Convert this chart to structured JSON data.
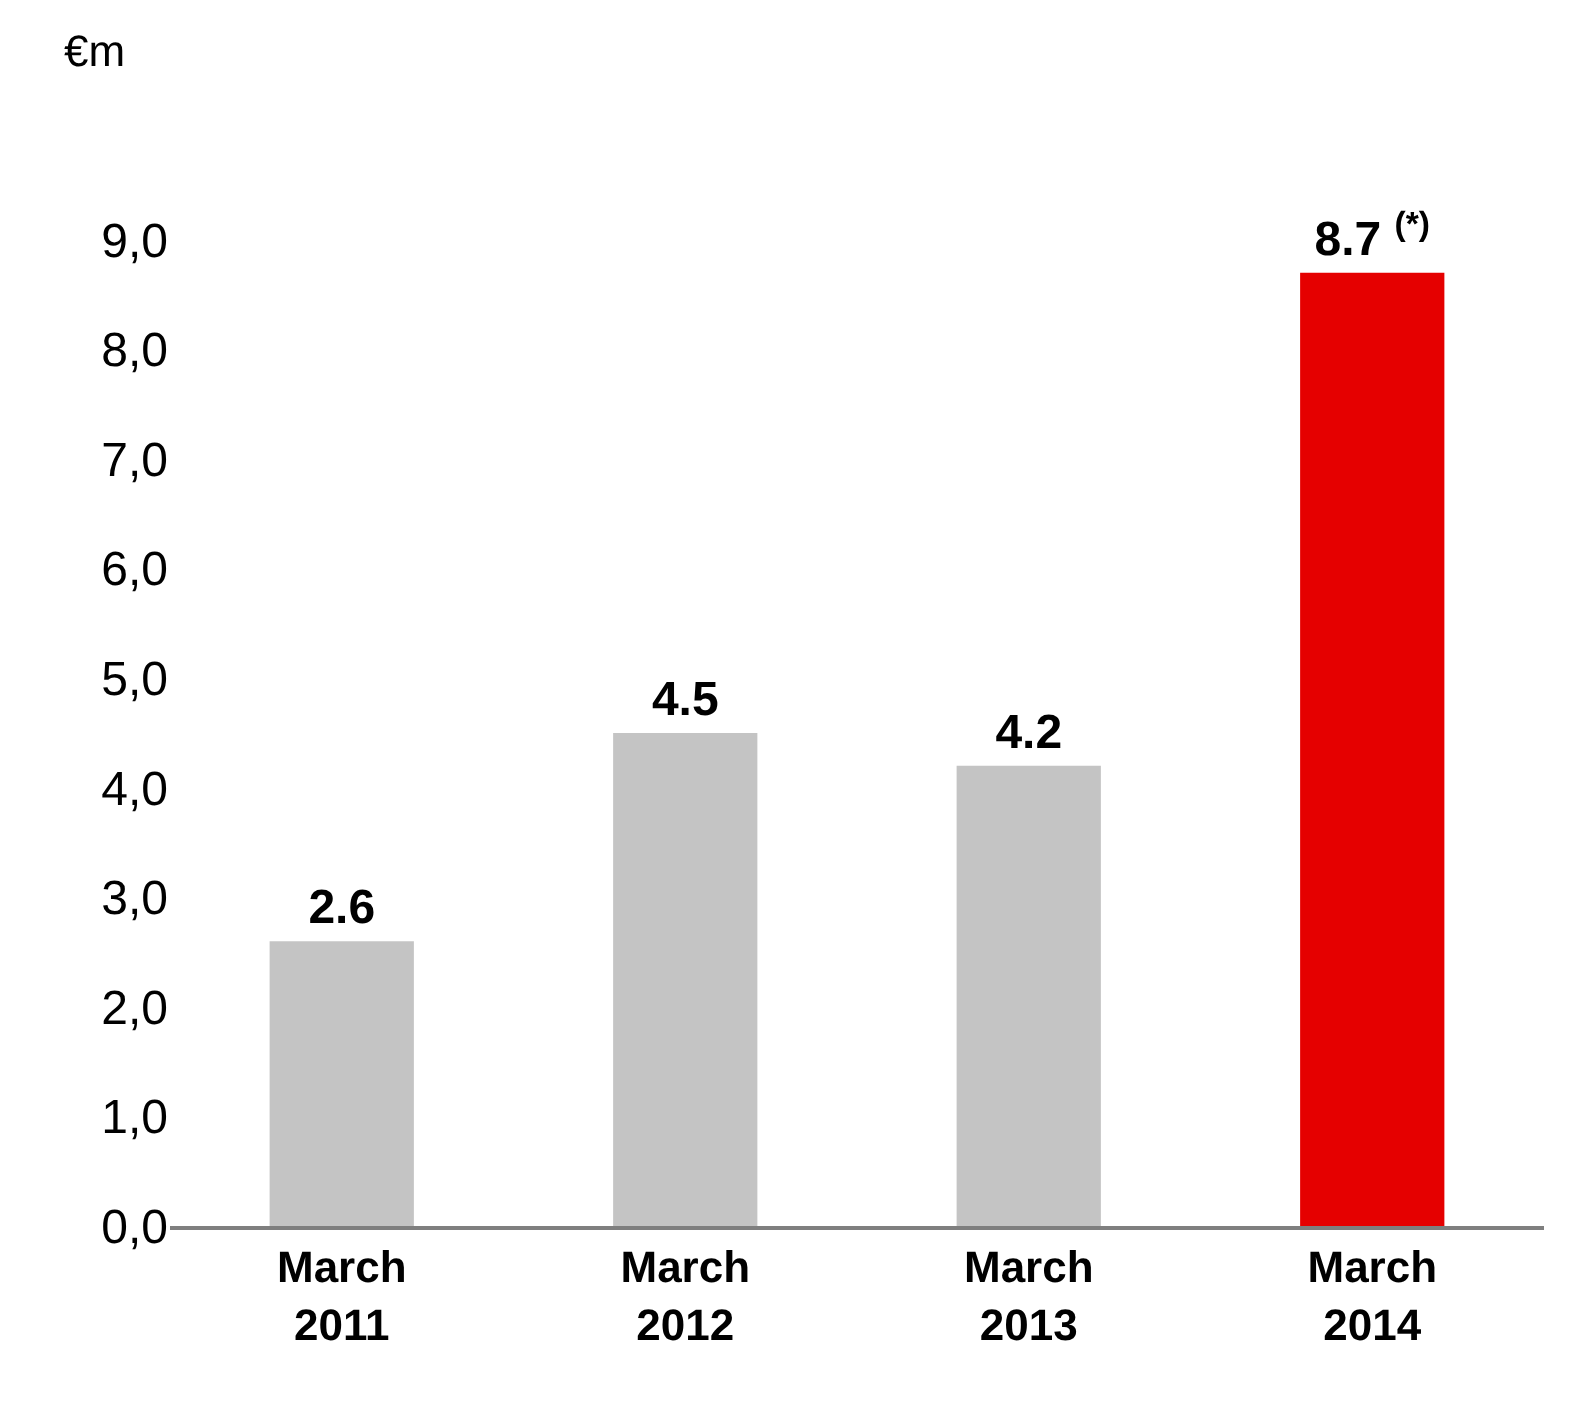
{
  "chart_data": {
    "type": "bar",
    "ylabel": "€m",
    "categories": [
      "March\n2011",
      "March\n2012",
      "March\n2013",
      "March\n2014"
    ],
    "values": [
      2.6,
      4.5,
      4.2,
      8.7
    ],
    "colors": [
      "#c4c4c4",
      "#c4c4c4",
      "#c4c4c4",
      "#e50000"
    ],
    "value_labels": [
      "2.6",
      "4.5",
      "4.2",
      "8.7 $^{(*)}$"
    ],
    "ylim": [
      0,
      9
    ],
    "yticks": [
      {
        "value": 0,
        "label": "0,0"
      },
      {
        "value": 1,
        "label": "1,0"
      },
      {
        "value": 2,
        "label": "2,0"
      },
      {
        "value": 3,
        "label": "3,0"
      },
      {
        "value": 4,
        "label": "4,0"
      },
      {
        "value": 5,
        "label": "5,0"
      },
      {
        "value": 6,
        "label": "6,0"
      },
      {
        "value": 7,
        "label": "7,0"
      },
      {
        "value": 8,
        "label": "8,0"
      },
      {
        "value": 9,
        "label": "9,0"
      }
    ]
  }
}
